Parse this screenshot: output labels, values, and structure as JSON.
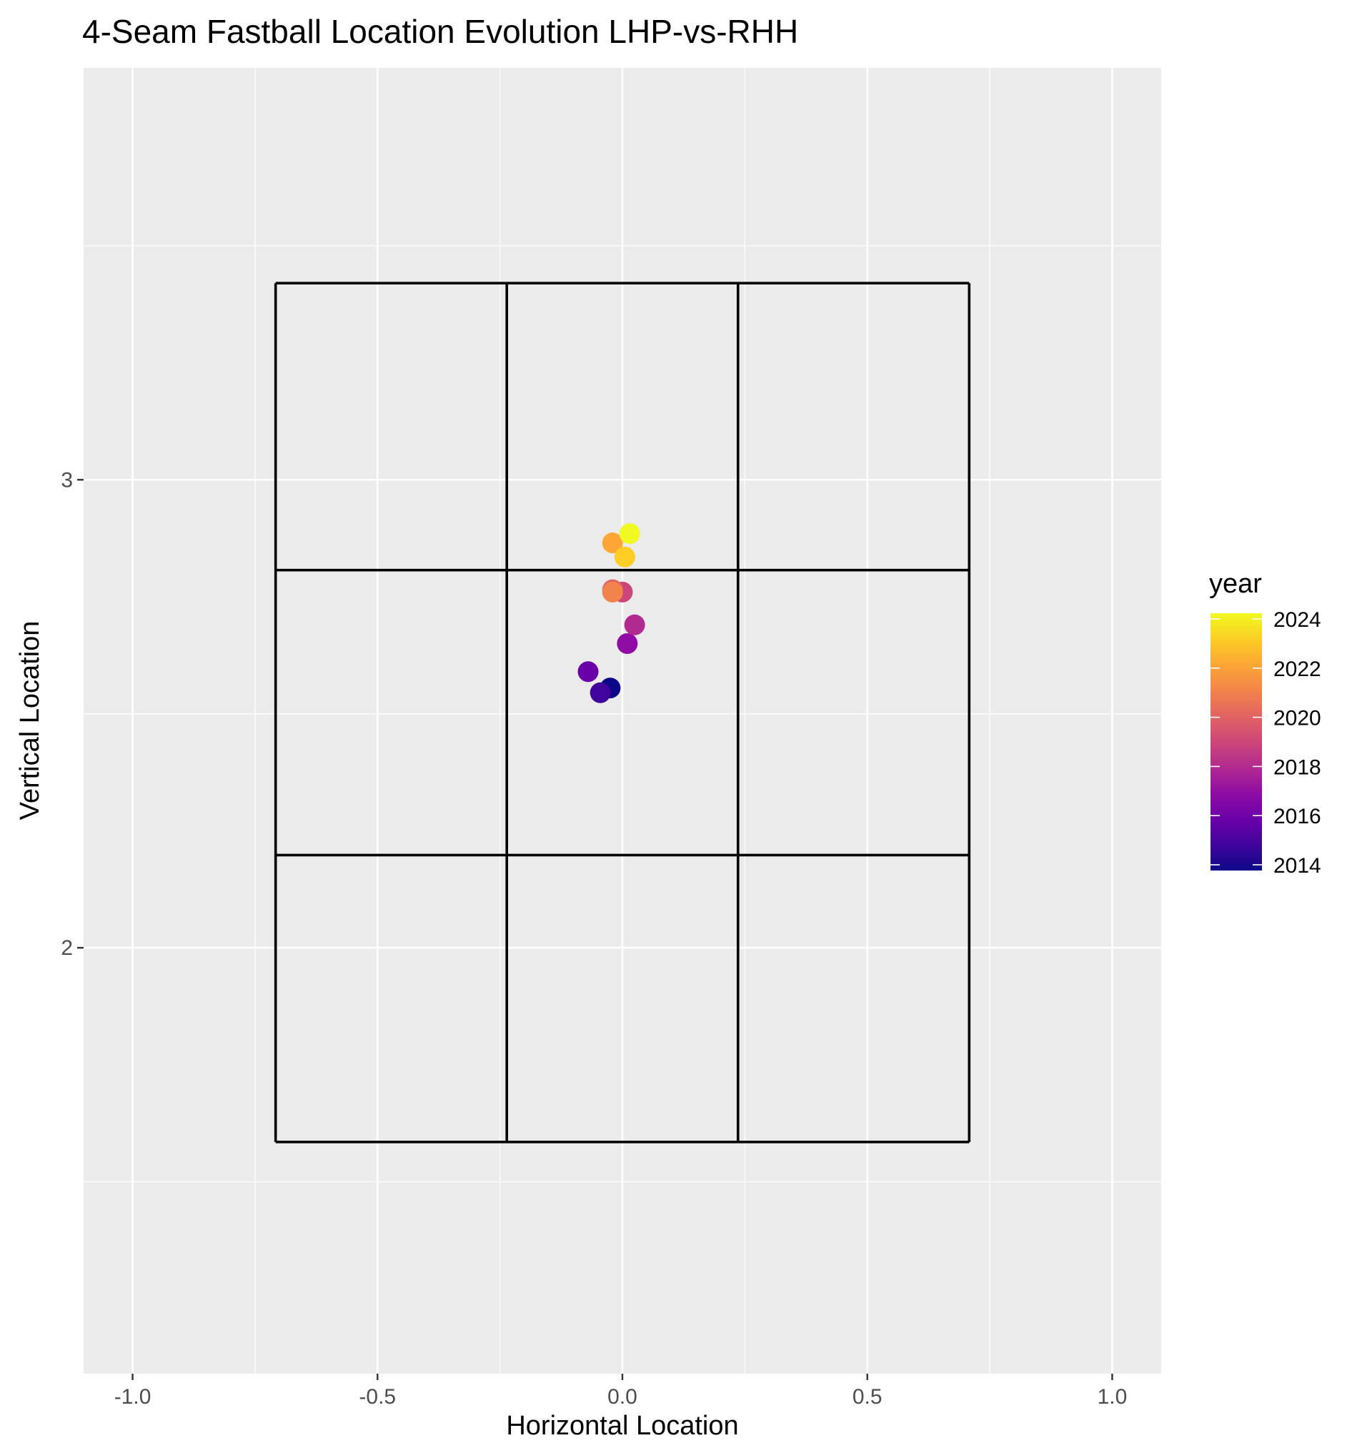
{
  "chart_data": {
    "type": "scatter",
    "title": "4-Seam Fastball Location Evolution LHP-vs-RHH",
    "xlabel": "Horizontal Location",
    "ylabel": "Vertical Location",
    "xlim": [
      -1.1,
      1.1
    ],
    "ylim": [
      1.09,
      3.88
    ],
    "x_ticks": [
      -1.0,
      -0.5,
      0.0,
      0.5,
      1.0
    ],
    "x_tick_labels": [
      "-1.0",
      "-0.5",
      "0.0",
      "0.5",
      "1.0"
    ],
    "y_ticks": [
      2,
      3
    ],
    "y_tick_labels": [
      "2",
      "3"
    ],
    "grid": true,
    "strike_zone": {
      "x_edges": [
        -0.708,
        -0.236,
        0.236,
        0.708
      ],
      "z_edges": [
        1.585,
        2.198,
        2.807,
        3.42
      ]
    },
    "color_scale": {
      "title": "year",
      "min": 2014,
      "max": 2024,
      "breaks": [
        2014,
        2016,
        2018,
        2020,
        2022,
        2024
      ],
      "labels": [
        "2014",
        "2016",
        "2018",
        "2020",
        "2022",
        "2024"
      ],
      "palette": "plasma",
      "legend_position": "right"
    },
    "points": [
      {
        "year": 2014,
        "x": -0.025,
        "y": 2.555
      },
      {
        "year": 2015,
        "x": -0.045,
        "y": 2.545
      },
      {
        "year": 2016,
        "x": -0.07,
        "y": 2.59
      },
      {
        "year": 2017,
        "x": 0.01,
        "y": 2.65
      },
      {
        "year": 2018,
        "x": 0.025,
        "y": 2.69
      },
      {
        "year": 2019,
        "x": 0.0,
        "y": 2.76
      },
      {
        "year": 2020,
        "x": -0.02,
        "y": 2.765
      },
      {
        "year": 2021,
        "x": -0.02,
        "y": 2.76
      },
      {
        "year": 2022,
        "x": -0.02,
        "y": 2.865
      },
      {
        "year": 2023,
        "x": 0.005,
        "y": 2.835
      },
      {
        "year": 2024,
        "x": 0.015,
        "y": 2.885
      }
    ]
  }
}
